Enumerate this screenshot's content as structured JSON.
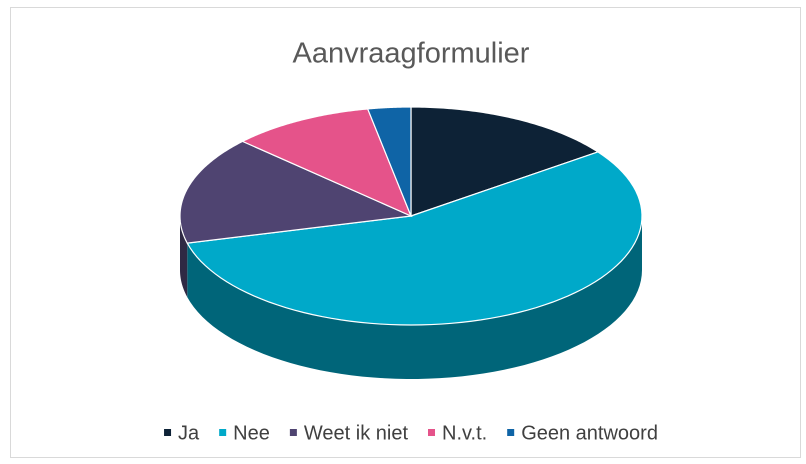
{
  "chart_data": {
    "type": "pie",
    "title": "Aanvraagformulier",
    "categories": [
      "Ja",
      "Nee",
      "Weet ik niet",
      "N.v.t.",
      "Geen antwoord"
    ],
    "values": [
      15,
      56,
      16,
      10,
      3
    ],
    "colors": [
      "#0d2236",
      "#00a9c9",
      "#4f4471",
      "#e5538a",
      "#0f64a6"
    ],
    "legend": "bottom"
  }
}
